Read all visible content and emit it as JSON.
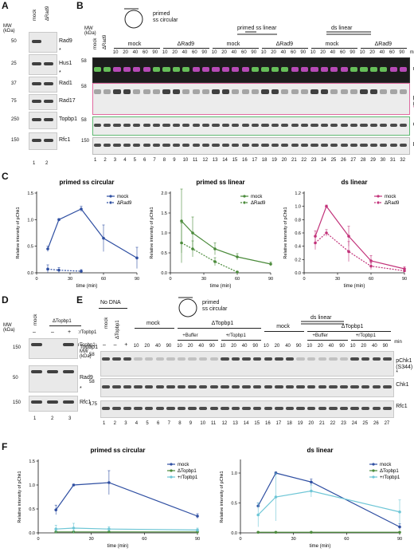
{
  "panels": {
    "A": {
      "letter": "A",
      "mw_label": "MW\n(kDa)",
      "lanes": [
        "mock",
        "ΔRad9"
      ],
      "lane_numbers": [
        "1",
        "2"
      ],
      "blots": [
        {
          "label": "Rad9",
          "mw": "50",
          "star": "*"
        },
        {
          "label": "Hus1",
          "mw": "25",
          "star": "*"
        },
        {
          "label": "Rad1",
          "mw": "37",
          "star": ""
        },
        {
          "label": "Rad17",
          "mw": "75",
          "star": ""
        },
        {
          "label": "Topbp1",
          "mw": "250",
          "star": ""
        },
        {
          "label": "Rfc1",
          "mw": "150",
          "star": ""
        }
      ]
    },
    "B": {
      "letter": "B",
      "mw_label": "MW\n(kDa)",
      "substrates": [
        "primed\nss circular",
        "primed ss linear",
        "ds linear"
      ],
      "mock_label": "mock",
      "drad9_label": "ΔRad9",
      "min_label": "min",
      "time_points": [
        "10",
        "20",
        "40",
        "60",
        "90"
      ],
      "blots": [
        "merge",
        "pChk1\n(S344)",
        "Chk1",
        "Rfc1"
      ],
      "star": "*",
      "mw_marks": [
        "58",
        "58",
        "58",
        "150"
      ],
      "lane_numbers": [
        "1",
        "2",
        "3",
        "4",
        "5",
        "6",
        "7",
        "8",
        "9",
        "10",
        "11",
        "12",
        "13",
        "14",
        "15",
        "16",
        "17",
        "18",
        "19",
        "20",
        "21",
        "22",
        "23",
        "24",
        "25",
        "26",
        "27",
        "28",
        "29",
        "30",
        "31",
        "32"
      ]
    },
    "C": {
      "letter": "C"
    },
    "D": {
      "letter": "D",
      "mw_label": "MW\n(kDa)",
      "lanes": [
        "mock",
        "ΔTopbp1"
      ],
      "rtop_label": ":rTopbp1",
      "rtop_signs": [
        "–",
        "–",
        "+"
      ],
      "blots": [
        {
          "label": "Topbp1",
          "mw": "150"
        },
        {
          "label": "Rad9",
          "mw": "50",
          "star": "*"
        },
        {
          "label": "Rfc1",
          "mw": "150"
        }
      ],
      "lane_numbers": [
        "1",
        "2",
        "3"
      ]
    },
    "E": {
      "letter": "E",
      "no_dna": "No DNA",
      "substrates": [
        "primed\nss circular",
        "ds linear"
      ],
      "col_mock": "mock",
      "col_dtop": "ΔTopbp1",
      "dtop_short": "ΔTopbp1",
      "buffer": "+Buffer",
      "rtop": "+rTopbp1",
      "rtop_row": "rTopbp1:",
      "minus": "–",
      "plus": "+",
      "min_label": "min",
      "time_points": [
        "10",
        "20",
        "40",
        "90"
      ],
      "mw_label": "MW\n(kDa)",
      "mw_marks": [
        "58",
        "58",
        "175"
      ],
      "blots": [
        "pChk1\n(S344)",
        "Chk1",
        "Rfc1"
      ],
      "star": "*",
      "lane_numbers": [
        "1",
        "2",
        "3",
        "4",
        "5",
        "6",
        "7",
        "8",
        "9",
        "10",
        "11",
        "12",
        "13",
        "14",
        "15",
        "16",
        "17",
        "18",
        "19",
        "20",
        "21",
        "22",
        "23",
        "24",
        "25",
        "26",
        "27"
      ]
    },
    "F": {
      "letter": "F"
    }
  },
  "chart_data": [
    {
      "type": "line",
      "panel": "C",
      "title": "primed ss circular",
      "xlabel": "time (min)",
      "ylabel": "Relative intensity of pChk1",
      "xlim": [
        0,
        90
      ],
      "ylim": [
        0,
        1.5
      ],
      "xticks": [
        0,
        30,
        60,
        90
      ],
      "yticks": [
        0.0,
        0.5,
        1.0,
        1.5
      ],
      "legend": "top-right",
      "series": [
        {
          "name": "mock",
          "color": "#2f4fa2",
          "dash": false,
          "x": [
            10,
            20,
            40,
            60,
            90
          ],
          "y": [
            0.45,
            1.0,
            1.2,
            0.65,
            0.28
          ],
          "err": [
            0.05,
            0.02,
            0.05,
            0.25,
            0.2
          ]
        },
        {
          "name": "ΔRad9",
          "color": "#2f4fa2",
          "dash": true,
          "x": [
            10,
            20,
            40
          ],
          "y": [
            0.07,
            0.05,
            0.03
          ],
          "err": [
            0.08,
            0.05,
            0.03
          ]
        }
      ]
    },
    {
      "type": "line",
      "panel": "C",
      "title": "primed ss linear",
      "xlabel": "time (min)",
      "ylabel": "Relative intensity of pChk1",
      "xlim": [
        0,
        90
      ],
      "ylim": [
        0,
        2.0
      ],
      "xticks": [
        0,
        30,
        60,
        90
      ],
      "yticks": [
        0.0,
        0.5,
        1.0,
        1.5,
        2.0
      ],
      "legend": "top-right",
      "series": [
        {
          "name": "mock",
          "color": "#4a8a3a",
          "dash": false,
          "x": [
            10,
            20,
            40,
            60,
            90
          ],
          "y": [
            1.3,
            1.0,
            0.6,
            0.4,
            0.22
          ],
          "err": [
            0.8,
            0.4,
            0.15,
            0.08,
            0.05
          ]
        },
        {
          "name": "ΔRad9",
          "color": "#4a8a3a",
          "dash": true,
          "x": [
            10,
            20,
            40,
            60
          ],
          "y": [
            0.75,
            0.6,
            0.28,
            0.02
          ],
          "err": [
            0.5,
            0.2,
            0.1,
            0.02
          ]
        }
      ]
    },
    {
      "type": "line",
      "panel": "C",
      "title": "ds linear",
      "xlabel": "time (min)",
      "ylabel": "Relative intensity of pChk1",
      "xlim": [
        0,
        90
      ],
      "ylim": [
        0,
        1.2
      ],
      "xticks": [
        0,
        30,
        60,
        90
      ],
      "yticks": [
        0.0,
        0.2,
        0.4,
        0.6,
        0.8,
        1.0,
        1.2
      ],
      "legend": "top-right",
      "series": [
        {
          "name": "mock",
          "color": "#c2337a",
          "dash": false,
          "x": [
            10,
            20,
            40,
            60,
            90
          ],
          "y": [
            0.55,
            1.0,
            0.55,
            0.18,
            0.06
          ],
          "err": [
            0.08,
            0.02,
            0.15,
            0.08,
            0.03
          ]
        },
        {
          "name": "ΔRad9",
          "color": "#c2337a",
          "dash": true,
          "x": [
            10,
            20,
            40,
            60,
            90
          ],
          "y": [
            0.45,
            0.6,
            0.32,
            0.1,
            0.03
          ],
          "err": [
            0.1,
            0.05,
            0.15,
            0.05,
            0.02
          ]
        }
      ]
    },
    {
      "type": "line",
      "panel": "F",
      "title": "primed ss circular",
      "xlabel": "time (min)",
      "ylabel": "Relative intensity of pChk1",
      "xlim": [
        0,
        90
      ],
      "ylim": [
        0,
        1.5
      ],
      "xticks": [
        0,
        30,
        60,
        90
      ],
      "yticks": [
        0.0,
        0.5,
        1.0,
        1.5
      ],
      "legend": "top-right",
      "series": [
        {
          "name": "mock",
          "color": "#2f4fa2",
          "dash": false,
          "x": [
            10,
            20,
            40,
            90
          ],
          "y": [
            0.48,
            1.0,
            1.05,
            0.35
          ],
          "err": [
            0.1,
            0.02,
            0.25,
            0.05
          ]
        },
        {
          "name": "ΔTopbp1",
          "color": "#4a8a3a",
          "dash": false,
          "x": [
            10,
            20,
            40,
            90
          ],
          "y": [
            0.02,
            0.02,
            0.02,
            0.02
          ],
          "err": [
            0.01,
            0.01,
            0.01,
            0.01
          ]
        },
        {
          "name": "+rTopbp1",
          "color": "#6ec6d6",
          "dash": false,
          "x": [
            10,
            20,
            40,
            90
          ],
          "y": [
            0.08,
            0.1,
            0.08,
            0.06
          ],
          "err": [
            0.08,
            0.1,
            0.05,
            0.04
          ]
        }
      ]
    },
    {
      "type": "line",
      "panel": "F",
      "title": "ds linear",
      "xlabel": "time (min)",
      "ylabel": "Relative intensity of pChk1",
      "xlim": [
        0,
        90
      ],
      "ylim": [
        0,
        1.2
      ],
      "xticks": [
        0,
        30,
        60,
        90
      ],
      "yticks": [
        0.0,
        0.5,
        1.0
      ],
      "legend": "top-right",
      "series": [
        {
          "name": "mock",
          "color": "#2f4fa2",
          "dash": false,
          "x": [
            10,
            20,
            40,
            90
          ],
          "y": [
            0.45,
            1.0,
            0.85,
            0.1
          ],
          "err": [
            0.05,
            0.02,
            0.05,
            0.05
          ]
        },
        {
          "name": "ΔTopbp1",
          "color": "#4a8a3a",
          "dash": false,
          "x": [
            10,
            20,
            40,
            90
          ],
          "y": [
            0.01,
            0.01,
            0.01,
            0.01
          ],
          "err": [
            0.01,
            0.01,
            0.01,
            0.01
          ]
        },
        {
          "name": "+rTopbp1",
          "color": "#6ec6d6",
          "dash": false,
          "x": [
            10,
            20,
            40,
            90
          ],
          "y": [
            0.3,
            0.6,
            0.7,
            0.35
          ],
          "err": [
            0.2,
            0.4,
            0.1,
            0.2
          ]
        }
      ]
    }
  ]
}
